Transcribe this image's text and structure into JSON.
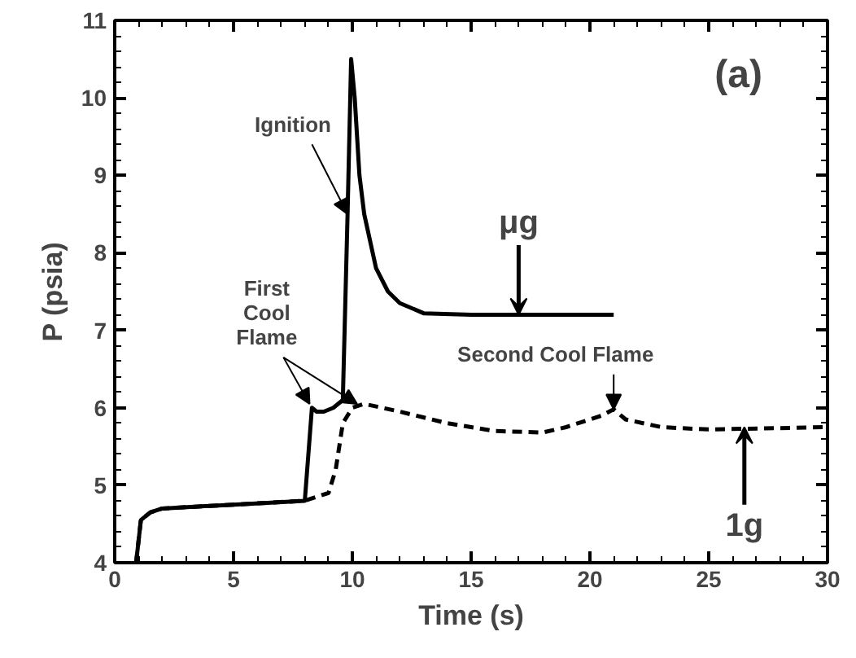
{
  "chart_data": {
    "type": "line",
    "xlabel": "Time (s)",
    "ylabel": "P (psia)",
    "xlim": [
      0,
      30
    ],
    "xticks": [
      0,
      5,
      10,
      15,
      20,
      25,
      30
    ],
    "ylim": [
      4,
      11
    ],
    "yticks": [
      4,
      5,
      6,
      7,
      8,
      9,
      10,
      11
    ],
    "grid": false,
    "series": [
      {
        "color": "#000000",
        "line_style": "solid",
        "x": [
          0.9,
          1.1,
          1.5,
          2,
          5,
          8,
          8.3,
          8.5,
          8.8,
          9.2,
          9.6,
          9.8,
          9.95,
          10.1,
          10.3,
          10.5,
          11,
          11.5,
          12,
          13,
          15,
          21
        ],
        "values": [
          4.0,
          4.55,
          4.65,
          4.7,
          4.75,
          4.8,
          6.0,
          5.95,
          5.95,
          6.0,
          6.1,
          8.5,
          10.5,
          10.0,
          9.0,
          8.5,
          7.8,
          7.5,
          7.35,
          7.22,
          7.2,
          7.2
        ]
      },
      {
        "color": "#000000",
        "line_style": "dashed",
        "x": [
          0.9,
          1.1,
          1.5,
          2,
          5,
          8,
          9,
          9.3,
          9.6,
          10,
          10.5,
          12,
          14,
          16,
          18,
          19,
          20.5,
          21,
          21.5,
          23,
          25,
          30
        ],
        "values": [
          4.0,
          4.55,
          4.65,
          4.7,
          4.75,
          4.8,
          4.9,
          5.2,
          5.8,
          6.0,
          6.05,
          5.95,
          5.8,
          5.7,
          5.68,
          5.75,
          5.9,
          5.98,
          5.85,
          5.75,
          5.72,
          5.75
        ]
      }
    ],
    "annotations": [
      "(a)",
      {
        "text": "Ignition",
        "x": 9.8,
        "y": 8.5
      },
      {
        "text": "First\nCool\nFlame",
        "x": 8.2,
        "y": 6.05
      },
      {
        "text": "Second  Cool  Flame",
        "x": 21,
        "y": 5.98
      },
      {
        "text": "μg",
        "x": 17,
        "y": 7.2
      },
      {
        "text": "1g",
        "x": 26.5,
        "y": 5.75
      }
    ]
  }
}
